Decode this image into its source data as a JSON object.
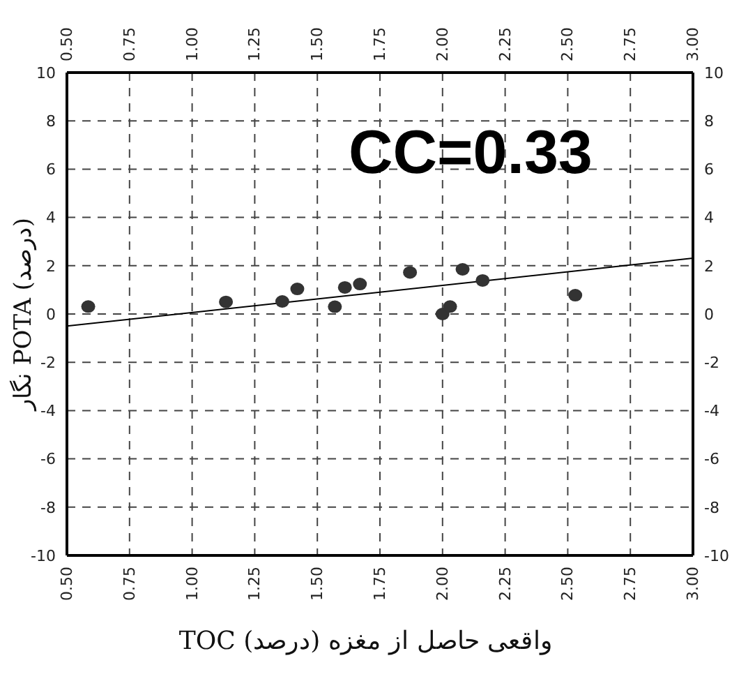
{
  "chart_data": {
    "type": "scatter",
    "xlabel": "TOC واقعی حاصل از مغزه (درصد)",
    "ylabel": "نگار POTA (درصد)",
    "annotations": [
      "CC=0.33"
    ],
    "xlim": [
      0.5,
      3.0
    ],
    "xticks": [
      {
        "value": 0.5,
        "label": "0.50"
      },
      {
        "value": 0.75,
        "label": "0.75"
      },
      {
        "value": 1.0,
        "label": "1.00"
      },
      {
        "value": 1.25,
        "label": "1.25"
      },
      {
        "value": 1.5,
        "label": "1.50"
      },
      {
        "value": 1.75,
        "label": "1.75"
      },
      {
        "value": 2.0,
        "label": "2.00"
      },
      {
        "value": 2.25,
        "label": "2.25"
      },
      {
        "value": 2.5,
        "label": "2.50"
      },
      {
        "value": 2.75,
        "label": "2.75"
      },
      {
        "value": 3.0,
        "label": "3.00"
      }
    ],
    "x2lim": [
      0.5,
      3.0
    ],
    "x2ticks": [
      {
        "value": 0.5,
        "label": "0.50"
      },
      {
        "value": 0.75,
        "label": "0.75"
      },
      {
        "value": 1.0,
        "label": "1.00"
      },
      {
        "value": 1.25,
        "label": "1.25"
      },
      {
        "value": 1.5,
        "label": "1.50"
      },
      {
        "value": 1.75,
        "label": "1.75"
      },
      {
        "value": 2.0,
        "label": "2.00"
      },
      {
        "value": 2.25,
        "label": "2.25"
      },
      {
        "value": 2.5,
        "label": "2.50"
      },
      {
        "value": 2.75,
        "label": "2.75"
      },
      {
        "value": 3.0,
        "label": "3.00"
      }
    ],
    "ylim": [
      -10,
      10
    ],
    "yticks": [
      -10,
      -8,
      -6,
      -4,
      -2,
      0,
      2,
      4,
      6,
      8,
      10
    ],
    "y2lim": [
      -10,
      10
    ],
    "y2ticks": [
      -10,
      -8,
      -6,
      -4,
      -2,
      0,
      2,
      4,
      6,
      8,
      10
    ],
    "grid": true,
    "series": [
      {
        "marker": "circle",
        "color": "#333333",
        "x": [
          0.585,
          1.135,
          1.36,
          1.42,
          1.57,
          1.61,
          1.67,
          1.87,
          2.0,
          2.03,
          2.08,
          2.16,
          2.53
        ],
        "values": [
          0.31,
          0.5,
          0.52,
          1.04,
          0.3,
          1.1,
          1.24,
          1.72,
          0.0,
          0.31,
          1.85,
          1.39,
          0.78
        ]
      },
      {
        "type": "line",
        "marker": "none",
        "line_style": "solid",
        "color": "#000000",
        "x": [
          0.5,
          3.0
        ],
        "values": [
          -0.5,
          2.31
        ]
      }
    ]
  }
}
